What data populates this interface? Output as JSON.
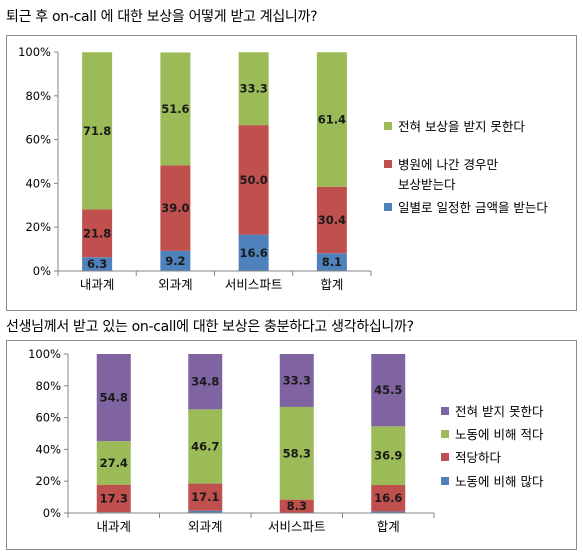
{
  "chart_data": [
    {
      "type": "bar",
      "stacked": true,
      "title": "퇴근 후 on-call 에 대한 보상을 어떻게 받고 계십니까?",
      "categories": [
        "내과계",
        "외과계",
        "서비스파트",
        "합계"
      ],
      "yticks": [
        "0%",
        "20%",
        "40%",
        "60%",
        "80%",
        "100%"
      ],
      "ylim": [
        0,
        100
      ],
      "grid": false,
      "legend_position": "right",
      "series": [
        {
          "name": "일별로 일정한 금액을 받는다",
          "color": "#4f81bd",
          "values": [
            6.3,
            9.2,
            16.6,
            8.1
          ],
          "labels": [
            "6.3",
            "9.2",
            "16.6",
            "8.1"
          ]
        },
        {
          "name": "병원에 나간 경우만 보상받는다",
          "color": "#c0504d",
          "values": [
            21.8,
            39.0,
            50.0,
            30.4
          ],
          "labels": [
            "21.8",
            "39.0",
            "50.0",
            "30.4"
          ]
        },
        {
          "name": "전혀 보상을 받지 못한다",
          "color": "#9bbb59",
          "values": [
            71.8,
            51.6,
            33.3,
            61.4
          ],
          "labels": [
            "71.8",
            "51.6",
            "33.3",
            "61.4"
          ]
        }
      ],
      "legend": [
        {
          "lines": [
            "전혀 보상을 받지 못한다"
          ],
          "color": "#9bbb59"
        },
        {
          "lines": [
            "병원에 나간 경우만",
            "보상받는다"
          ],
          "color": "#c0504d"
        },
        {
          "lines": [
            "일별로 일정한 금액을 받는다"
          ],
          "color": "#4f81bd"
        }
      ]
    },
    {
      "type": "bar",
      "stacked": true,
      "title": "선생님께서 받고 있는 on-call에 대한 보상은 충분하다고 생각하십니까?",
      "categories": [
        "내과계",
        "외과계",
        "서비스파트",
        "합계"
      ],
      "yticks": [
        "0%",
        "20%",
        "40%",
        "60%",
        "80%",
        "100%"
      ],
      "ylim": [
        0,
        100
      ],
      "grid": false,
      "legend_position": "right",
      "series": [
        {
          "name": "노동에 비해 많다",
          "color": "#4f81bd",
          "values": [
            0.5,
            1.4,
            0.1,
            1.0
          ],
          "labels": [
            "",
            "",
            "",
            ""
          ]
        },
        {
          "name": "적당하다",
          "color": "#c0504d",
          "values": [
            17.3,
            17.1,
            8.3,
            16.6
          ],
          "labels": [
            "17.3",
            "17.1",
            "8.3",
            "16.6"
          ]
        },
        {
          "name": "노동에 비해 적다",
          "color": "#9bbb59",
          "values": [
            27.4,
            46.7,
            58.3,
            36.9
          ],
          "labels": [
            "27.4",
            "46.7",
            "58.3",
            "36.9"
          ]
        },
        {
          "name": "전혀 받지 못한다",
          "color": "#8064a2",
          "values": [
            54.8,
            34.8,
            33.3,
            45.5
          ],
          "labels": [
            "54.8",
            "34.8",
            "33.3",
            "45.5"
          ]
        }
      ],
      "legend": [
        {
          "lines": [
            "전혀 받지 못한다"
          ],
          "color": "#8064a2"
        },
        {
          "lines": [
            "노동에 비해 적다"
          ],
          "color": "#9bbb59"
        },
        {
          "lines": [
            "적당하다"
          ],
          "color": "#c0504d"
        },
        {
          "lines": [
            "노동에 비해 많다"
          ],
          "color": "#4f81bd"
        }
      ]
    }
  ]
}
